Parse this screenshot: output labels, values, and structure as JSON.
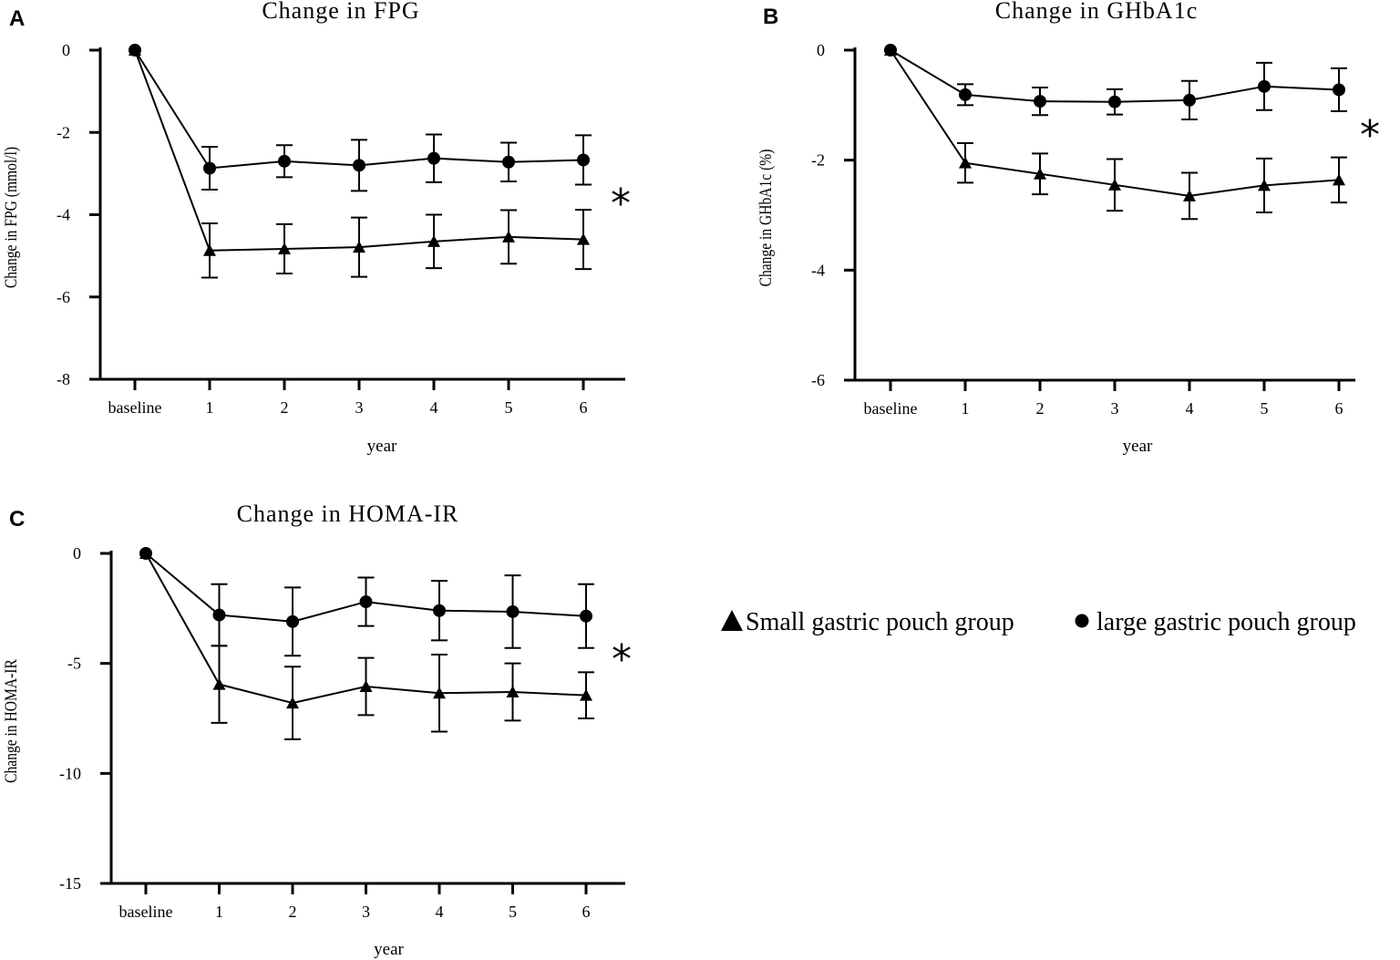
{
  "legend": {
    "small_label": "Small gastric pouch group",
    "large_label": "large gastric pouch group",
    "small_marker": "triangle",
    "large_marker": "circle"
  },
  "chart_data": [
    {
      "type": "line",
      "panel": "A",
      "title": "Change in FPG",
      "xlabel": "year",
      "ylabel": "Change in FPG (mmol/l)",
      "categories": [
        "baseline",
        "1",
        "2",
        "3",
        "4",
        "5",
        "6"
      ],
      "ylim": [
        -8,
        0
      ],
      "yticks": [
        0,
        -2,
        -4,
        -6,
        -8
      ],
      "ytick_labels": [
        "0",
        "-2",
        "-4",
        "-6",
        "-8"
      ],
      "significance": "*",
      "series": [
        {
          "name": "large gastric pouch group",
          "marker": "circle",
          "values": [
            0,
            -2.87,
            -2.7,
            -2.8,
            -2.63,
            -2.72,
            -2.67
          ],
          "errors": [
            0,
            0.52,
            0.39,
            0.62,
            0.58,
            0.47,
            0.6
          ]
        },
        {
          "name": "Small gastric pouch group",
          "marker": "triangle",
          "values": [
            0,
            -4.87,
            -4.83,
            -4.79,
            -4.65,
            -4.54,
            -4.6
          ],
          "errors": [
            0,
            0.66,
            0.6,
            0.72,
            0.65,
            0.65,
            0.72
          ]
        }
      ]
    },
    {
      "type": "line",
      "panel": "B",
      "title": "Change in GHbA1c",
      "xlabel": "year",
      "ylabel": "Change in GHbA1c (%)",
      "categories": [
        "baseline",
        "1",
        "2",
        "3",
        "4",
        "5",
        "6"
      ],
      "ylim": [
        -6,
        0
      ],
      "yticks": [
        0,
        -2,
        -4,
        -6
      ],
      "ytick_labels": [
        "0",
        "-2",
        "-4",
        "-6"
      ],
      "significance": "*",
      "series": [
        {
          "name": "large gastric pouch group",
          "marker": "circle",
          "values": [
            0,
            -0.81,
            -0.93,
            -0.94,
            -0.91,
            -0.66,
            -0.72
          ],
          "errors": [
            0,
            0.19,
            0.25,
            0.23,
            0.35,
            0.43,
            0.39
          ]
        },
        {
          "name": "Small gastric pouch group",
          "marker": "triangle",
          "values": [
            0,
            -2.05,
            -2.25,
            -2.45,
            -2.65,
            -2.46,
            -2.36
          ],
          "errors": [
            0,
            0.36,
            0.37,
            0.47,
            0.42,
            0.49,
            0.41
          ]
        }
      ]
    },
    {
      "type": "line",
      "panel": "C",
      "title": "Change in HOMA-IR",
      "xlabel": "year",
      "ylabel": "Change in HOMA-IR",
      "categories": [
        "baseline",
        "1",
        "2",
        "3",
        "4",
        "5",
        "6"
      ],
      "ylim": [
        -15,
        0
      ],
      "yticks": [
        0,
        -5,
        -10,
        -15
      ],
      "ytick_labels": [
        "0",
        "-5",
        "-10",
        "-15"
      ],
      "significance": "*",
      "series": [
        {
          "name": "large gastric pouch group",
          "marker": "circle",
          "values": [
            0,
            -2.8,
            -3.1,
            -2.2,
            -2.6,
            -2.65,
            -2.85
          ],
          "errors": [
            0,
            1.4,
            1.55,
            1.1,
            1.35,
            1.65,
            1.45
          ]
        },
        {
          "name": "Small gastric pouch group",
          "marker": "triangle",
          "values": [
            0,
            -5.95,
            -6.8,
            -6.05,
            -6.35,
            -6.3,
            -6.45
          ],
          "errors": [
            0,
            1.75,
            1.65,
            1.3,
            1.75,
            1.3,
            1.05
          ]
        }
      ]
    }
  ]
}
